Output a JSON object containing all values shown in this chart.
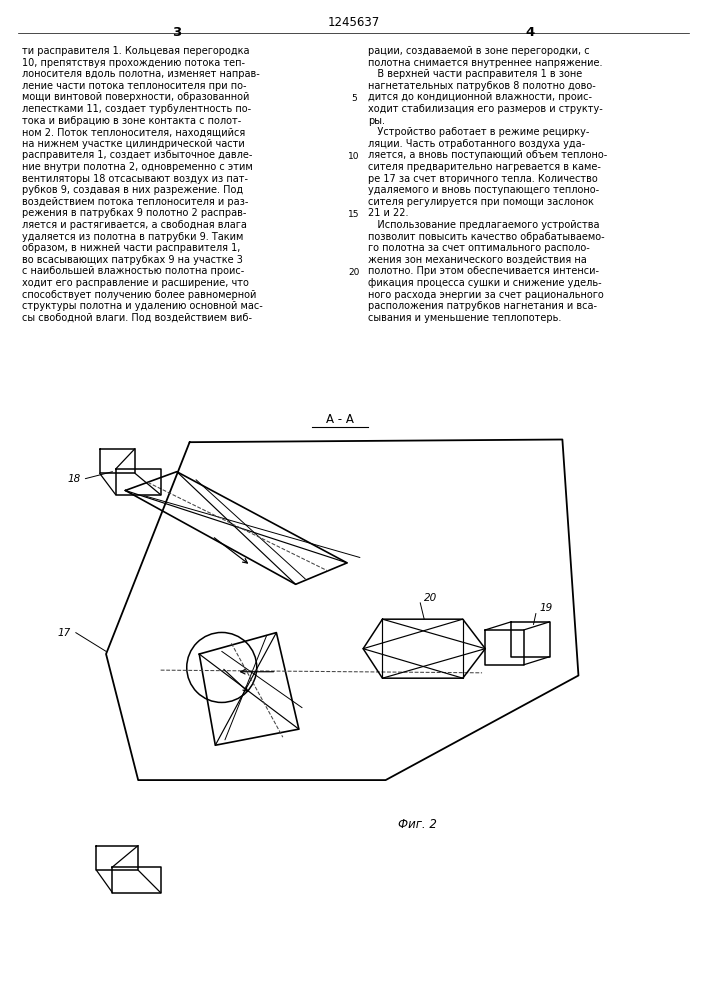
{
  "page_color": "#ffffff",
  "patent_number": "1245637",
  "col_left_number": "3",
  "col_right_number": "4",
  "text_col1": [
    "ти расправителя 1. Кольцевая перегородка",
    "10, препятствуя прохождению потока теп-",
    "лоносителя вдоль полотна, изменяет направ-",
    "ление части потока теплоносителя при по-",
    "мощи винтовой поверхности, образованной",
    "лепестками 11, создает турбулентность по-",
    "тока и вибрацию в зоне контакта с полот-",
    "ном 2. Поток теплоносителя, находящийся",
    "на нижнем участке цилиндрической части",
    "расправителя 1, создает избыточное давле-",
    "ние внутри полотна 2, одновременно с этим",
    "вентиляторы 18 отсасывают воздух из пат-",
    "рубков 9, создавая в них разрежение. Под",
    "воздействием потока теплоносителя и раз-",
    "режения в патрубках 9 полотно 2 расправ-",
    "ляется и растягивается, а свободная влага",
    "удаляется из полотна в патрубки 9. Таким",
    "образом, в нижней части расправителя 1,",
    "во всасывающих патрубках 9 на участке 3",
    "с наибольшей влажностью полотна проис-",
    "ходит его расправление и расширение, что",
    "способствует получению более равномерной",
    "структуры полотна и удалению основной мас-",
    "сы свободной влаги. Под воздействием виб-"
  ],
  "text_col2": [
    "рации, создаваемой в зоне перегородки, с",
    "полотна снимается внутреннее напряжение.",
    "   В верхней части расправителя 1 в зоне",
    "нагнетательных патрубков 8 полотно дово-",
    "дится до кондиционной влажности, проис-",
    "ходит стабилизация его размеров и структу-",
    "ры.",
    "   Устройство работает в режиме рецирку-",
    "ляции. Часть отработанного воздуха уда-",
    "ляется, а вновь поступающий объем теплоно-",
    "сителя предварительно нагревается в каме-",
    "ре 17 за счет вторичного тепла. Количество",
    "удаляемого и вновь поступающего теплоно-",
    "сителя регулируется при помощи заслонок",
    "21 и 22.",
    "   Использование предлагаемого устройства",
    "позволит повысить качество обрабатываемо-",
    "го полотна за счет оптимального располо-",
    "жения зон механического воздействия на",
    "полотно. При этом обеспечивается интенси-",
    "фикация процесса сушки и снижение удель-",
    "ного расхода энергии за счет рационального",
    "расположения патрубков нагнетания и вса-",
    "сывания и уменьшение теплопотерь."
  ],
  "section_label": "А - А",
  "fig_label": "Фиг. 2",
  "font_size_body": 7.0,
  "font_size_header": 8.5
}
